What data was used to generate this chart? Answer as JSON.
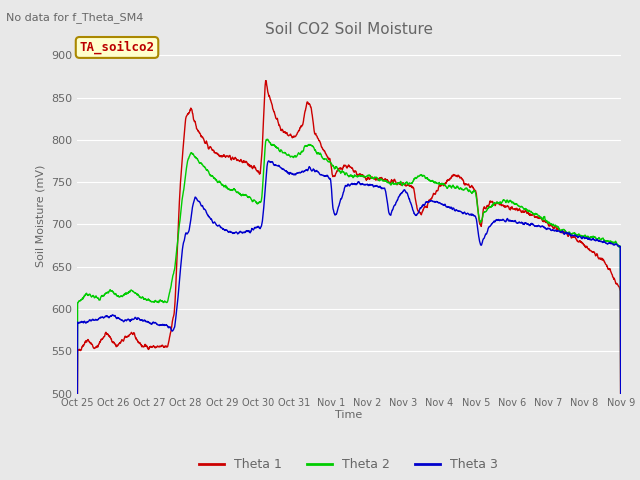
{
  "title": "Soil CO2 Soil Moisture",
  "subtitle": "No data for f_Theta_SM4",
  "ylabel": "Soil Moisture (mV)",
  "xlabel": "Time",
  "ylim": [
    500,
    920
  ],
  "yticks": [
    500,
    550,
    600,
    650,
    700,
    750,
    800,
    850,
    900
  ],
  "xtick_labels": [
    "Oct 25",
    "Oct 26",
    "Oct 27",
    "Oct 28",
    "Oct 29",
    "Oct 30",
    "Oct 31",
    "Nov 1",
    "Nov 2",
    "Nov 3",
    "Nov 4",
    "Nov 5",
    "Nov 6",
    "Nov 7",
    "Nov 8",
    "Nov 9"
  ],
  "legend_labels": [
    "Theta 1",
    "Theta 2",
    "Theta 3"
  ],
  "line_colors": [
    "#cc0000",
    "#00cc00",
    "#0000cc"
  ],
  "annotation_text": "TA_soilco2",
  "annotation_bg": "#ffffcc",
  "annotation_border": "#aa8800",
  "text_color": "#666666",
  "bg_color": "#e8e8e8",
  "grid_color": "#ffffff"
}
